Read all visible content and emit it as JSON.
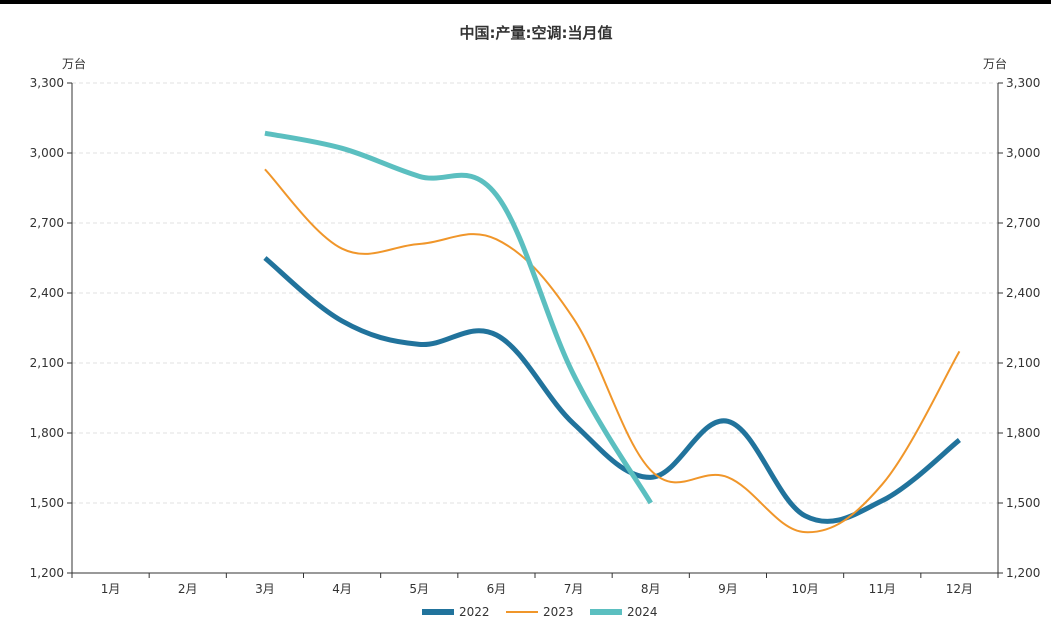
{
  "chart_data": {
    "type": "line",
    "title": "中国:产量:空调:当月值",
    "ylabel_left": "万台",
    "ylabel_right": "万台",
    "categories": [
      "1月",
      "2月",
      "3月",
      "4月",
      "5月",
      "6月",
      "7月",
      "8月",
      "9月",
      "10月",
      "11月",
      "12月"
    ],
    "ylim": [
      1200,
      3300
    ],
    "yticks": [
      1200,
      1500,
      1800,
      2100,
      2400,
      2700,
      3000,
      3300
    ],
    "ytick_labels": [
      "1,200",
      "1,500",
      "1,800",
      "2,100",
      "2,400",
      "2,700",
      "3,000",
      "3,300"
    ],
    "grid": true,
    "legend_position": "bottom",
    "series": [
      {
        "name": "2022",
        "color": "#21739c",
        "width": 5,
        "values": [
          null,
          null,
          2550,
          2280,
          2180,
          2220,
          1840,
          1610,
          1850,
          1445,
          1510,
          1770
        ]
      },
      {
        "name": "2023",
        "color": "#f0962a",
        "width": 2,
        "values": [
          null,
          null,
          2930,
          2590,
          2610,
          2630,
          2290,
          1640,
          1610,
          1375,
          1580,
          2150
        ]
      },
      {
        "name": "2024",
        "color": "#5bbfc0",
        "width": 5,
        "values": [
          null,
          null,
          3085,
          3020,
          2900,
          2820,
          2050,
          1500,
          null,
          null,
          null,
          null
        ]
      }
    ]
  }
}
